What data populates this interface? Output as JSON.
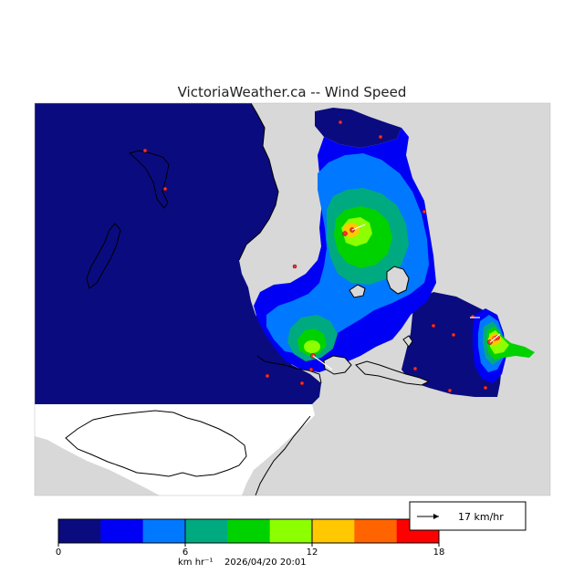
{
  "title": "VictoriaWeather.ca -- Wind Speed",
  "colorbar": {
    "colors": [
      "#0b0b80",
      "#0000f5",
      "#0078ff",
      "#00aa80",
      "#00d200",
      "#8cff00",
      "#ffc800",
      "#ff6400",
      "#ff0000"
    ],
    "ticks": [
      "0",
      "6",
      "12",
      "18"
    ],
    "units": "km hr⁻¹",
    "timestamp": "2026/04/20 20:01"
  },
  "vector_legend": {
    "label": "17 km/hr"
  },
  "map_colors": {
    "land_outside": "#d8d8d8",
    "water": "#ffffff",
    "station_marker": "#ff3030"
  }
}
